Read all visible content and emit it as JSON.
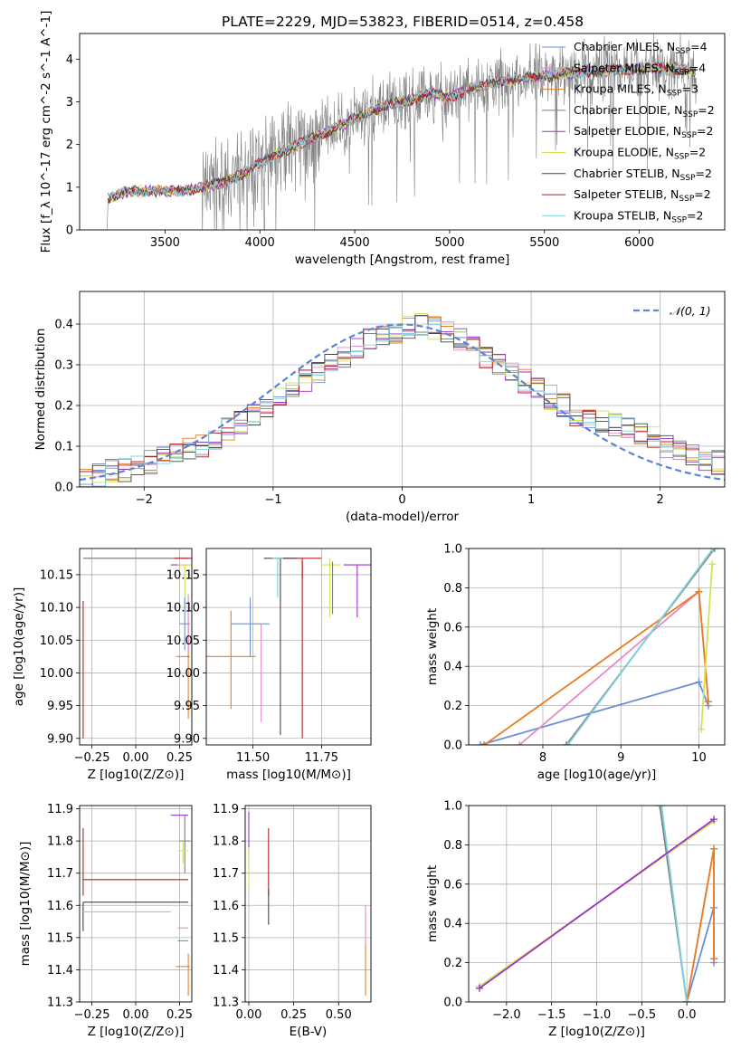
{
  "title": "PLATE=2229, MJD=53823, FIBERID=0514, z=0.458",
  "models": [
    {
      "label": "Chabrier MILES, N",
      "sub": "SSP",
      "suffix": "=4",
      "color": "#6a8fdb"
    },
    {
      "label": "Salpeter MILES, N",
      "sub": "SSP",
      "suffix": "=4",
      "color": "#e78ac3"
    },
    {
      "label": "Kroupa MILES, N",
      "sub": "SSP",
      "suffix": "=3",
      "color": "#e67e22"
    },
    {
      "label": "Chabrier ELODIE, N",
      "sub": "SSP",
      "suffix": "=2",
      "color": "#7f7f7f"
    },
    {
      "label": "Salpeter ELODIE, N",
      "sub": "SSP",
      "suffix": "=2",
      "color": "#9b30c9"
    },
    {
      "label": "Kroupa ELODIE, N",
      "sub": "SSP",
      "suffix": "=2",
      "color": "#d4e157"
    },
    {
      "label": "Chabrier STELIB, N",
      "sub": "SSP",
      "suffix": "=2",
      "color": "#444444"
    },
    {
      "label": "Salpeter STELIB, N",
      "sub": "SSP",
      "suffix": "=2",
      "color": "#b22222"
    },
    {
      "label": "Kroupa STELIB, N",
      "sub": "SSP",
      "suffix": "=2",
      "color": "#7fd3dc"
    }
  ],
  "chart_data": [
    {
      "type": "line",
      "id": "spectrum",
      "xlabel": "wavelength [Angstrom, rest frame]",
      "ylabel": "Flux [f_λ 10^-17 erg cm^-2 s^-1 A^-1]",
      "xlim": [
        3050,
        6450
      ],
      "ylim": [
        0,
        4.6
      ],
      "xticks": [
        3500,
        4000,
        4500,
        5000,
        5500,
        6000
      ],
      "yticks": [
        0,
        1,
        2,
        3,
        4
      ],
      "grid": false,
      "legend": "right",
      "data_color": "#808080",
      "model_x": [
        3200,
        3300,
        3400,
        3500,
        3600,
        3700,
        3800,
        3900,
        4000,
        4100,
        4200,
        4300,
        4400,
        4500,
        4600,
        4700,
        4800,
        4900,
        5000,
        5100,
        5200,
        5300,
        5400,
        5500,
        5600,
        5700,
        5800,
        5900,
        6000,
        6100,
        6200,
        6300
      ],
      "model_y": [
        0.75,
        0.9,
        0.92,
        0.9,
        0.92,
        1.0,
        1.1,
        1.3,
        1.55,
        1.8,
        2.0,
        2.2,
        2.4,
        2.6,
        2.8,
        2.95,
        3.05,
        3.2,
        3.1,
        3.3,
        3.4,
        3.5,
        3.55,
        3.6,
        3.65,
        3.7,
        3.72,
        3.75,
        3.78,
        3.8,
        3.78,
        3.7
      ]
    },
    {
      "type": "line",
      "id": "residual-distribution",
      "xlabel": "(data-model)/error",
      "ylabel": "Normed distribution",
      "xlim": [
        -2.5,
        2.5
      ],
      "ylim": [
        0,
        0.48
      ],
      "xticks": [
        -2,
        -1,
        0,
        1,
        2
      ],
      "yticks": [
        0.0,
        0.1,
        0.2,
        0.3,
        0.4
      ],
      "grid": true,
      "legend": "top-right",
      "gaussian_label": "𝒩(0, 1)",
      "gaussian_color": "#5b84d6",
      "bin_width": 0.1,
      "hist_x0": -2.5,
      "hist_base": [
        0.02,
        0.03,
        0.04,
        0.04,
        0.05,
        0.06,
        0.07,
        0.08,
        0.09,
        0.1,
        0.12,
        0.14,
        0.16,
        0.18,
        0.2,
        0.22,
        0.24,
        0.26,
        0.28,
        0.3,
        0.32,
        0.34,
        0.36,
        0.37,
        0.38,
        0.39,
        0.4,
        0.39,
        0.38,
        0.36,
        0.34,
        0.32,
        0.3,
        0.28,
        0.26,
        0.24,
        0.22,
        0.2,
        0.18,
        0.17,
        0.16,
        0.15,
        0.14,
        0.13,
        0.12,
        0.1,
        0.09,
        0.08,
        0.07,
        0.06
      ]
    },
    {
      "type": "scatter",
      "id": "age-vs-metallicity",
      "xlabel": "Z [log10(Z/Z⊙)]",
      "ylabel": "age  [log10(age/yr)]",
      "xlim": [
        -0.32,
        0.32
      ],
      "ylim": [
        9.89,
        10.19
      ],
      "xticks": [
        -0.25,
        0.0,
        0.25
      ],
      "yticks": [
        9.9,
        9.95,
        10.0,
        10.05,
        10.1,
        10.15
      ],
      "grid": true
    },
    {
      "type": "scatter",
      "id": "age-vs-mass",
      "xlabel": "mass [log10(M/M⊙)]",
      "ylabel": "",
      "xlim": [
        11.33,
        11.93
      ],
      "ylim": [
        9.89,
        10.19
      ],
      "xticks": [
        11.5,
        11.75
      ],
      "yticks": [
        9.9,
        9.95,
        10.0,
        10.05,
        10.1,
        10.15
      ],
      "grid": true
    },
    {
      "type": "line",
      "id": "mass-weight-vs-age",
      "xlabel": "age  [log10(age/yr)]",
      "ylabel": "mass weight",
      "xlim": [
        7.05,
        10.33
      ],
      "ylim": [
        0,
        1.0
      ],
      "xticks": [
        8,
        9,
        10
      ],
      "yticks": [
        0.0,
        0.2,
        0.4,
        0.6,
        0.8,
        1.0
      ],
      "grid": true,
      "series": [
        {
          "model": 0,
          "x": [
            7.2,
            10.0,
            10.12
          ],
          "y": [
            0.0,
            0.32,
            0.2
          ]
        },
        {
          "model": 1,
          "x": [
            7.7,
            10.0,
            10.12
          ],
          "y": [
            0.0,
            0.78,
            0.22
          ]
        },
        {
          "model": 2,
          "x": [
            7.25,
            10.0,
            10.12
          ],
          "y": [
            0.0,
            0.78,
            0.22
          ]
        },
        {
          "model": 3,
          "x": [
            8.3,
            10.2
          ],
          "y": [
            0.0,
            1.0
          ]
        },
        {
          "model": 5,
          "x": [
            10.03,
            10.17
          ],
          "y": [
            0.08,
            0.92
          ]
        },
        {
          "model": 8,
          "x": [
            8.32,
            10.18
          ],
          "y": [
            0.0,
            1.0
          ]
        }
      ]
    },
    {
      "type": "scatter",
      "id": "mass-vs-metallicity",
      "xlabel": "Z [log10(Z/Z⊙)]",
      "ylabel": "mass [log10(M/M⊙)]",
      "xlim": [
        -0.32,
        0.32
      ],
      "ylim": [
        11.3,
        11.91
      ],
      "xticks": [
        -0.25,
        0.0,
        0.25
      ],
      "yticks": [
        11.3,
        11.4,
        11.5,
        11.6,
        11.7,
        11.8,
        11.9
      ],
      "grid": true
    },
    {
      "type": "scatter",
      "id": "mass-vs-extinction",
      "xlabel": "E(B-V)",
      "ylabel": "",
      "xlim": [
        -0.02,
        0.68
      ],
      "ylim": [
        11.3,
        11.91
      ],
      "xticks": [
        0.0,
        0.25,
        0.5
      ],
      "yticks": [
        11.3,
        11.4,
        11.5,
        11.6,
        11.7,
        11.8,
        11.9
      ],
      "grid": true
    },
    {
      "type": "line",
      "id": "mass-weight-vs-metallicity",
      "xlabel": "Z [log10(Z/Z⊙)]",
      "ylabel": "mass weight",
      "xlim": [
        -2.42,
        0.42
      ],
      "ylim": [
        0,
        1.0
      ],
      "xticks": [
        -2.0,
        -1.5,
        -1.0,
        -0.5,
        0.0
      ],
      "yticks": [
        0.0,
        0.2,
        0.4,
        0.6,
        0.8,
        1.0
      ],
      "grid": true,
      "series": [
        {
          "model": 0,
          "x": [
            0.0,
            0.3,
            0.3
          ],
          "y": [
            0.0,
            0.48,
            0.2
          ]
        },
        {
          "model": 1,
          "x": [
            0.0,
            0.3,
            0.3
          ],
          "y": [
            0.0,
            0.78,
            0.22
          ]
        },
        {
          "model": 2,
          "x": [
            0.0,
            0.3,
            0.3
          ],
          "y": [
            0.0,
            0.78,
            0.22
          ]
        },
        {
          "model": 3,
          "x": [
            -0.3,
            0.0
          ],
          "y": [
            1.0,
            0.0
          ]
        },
        {
          "model": 5,
          "x": [
            -2.3,
            0.3
          ],
          "y": [
            0.08,
            0.92
          ]
        },
        {
          "model": 8,
          "x": [
            -0.28,
            0.0
          ],
          "y": [
            1.0,
            0.0
          ]
        },
        {
          "model": 4,
          "x": [
            -2.3,
            0.3
          ],
          "y": [
            0.07,
            0.93
          ]
        }
      ]
    }
  ]
}
